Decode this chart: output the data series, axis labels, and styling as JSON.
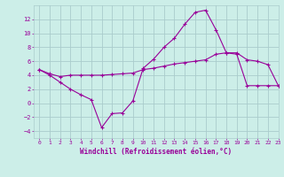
{
  "xlabel": "Windchill (Refroidissement éolien,°C)",
  "background_color": "#cceee8",
  "grid_color": "#aacccc",
  "line_color": "#990099",
  "x_ticks": [
    0,
    1,
    2,
    3,
    4,
    5,
    6,
    7,
    8,
    9,
    10,
    11,
    12,
    13,
    14,
    15,
    16,
    17,
    18,
    19,
    20,
    21,
    22,
    23
  ],
  "ylim": [
    -5,
    14
  ],
  "xlim": [
    -0.5,
    23
  ],
  "yticks": [
    -4,
    -2,
    0,
    2,
    4,
    6,
    8,
    10,
    12
  ],
  "line1_x": [
    0,
    1,
    2,
    3,
    4,
    5,
    6,
    7,
    8,
    9,
    10,
    11,
    12,
    13,
    14,
    15,
    16,
    17,
    18,
    19,
    20,
    21,
    22,
    23
  ],
  "line1_y": [
    4.8,
    4.0,
    3.0,
    2.0,
    1.2,
    0.5,
    -3.5,
    -1.5,
    -1.4,
    0.3,
    5.0,
    6.3,
    8.0,
    9.3,
    11.3,
    13.0,
    13.3,
    10.5,
    7.2,
    7.2,
    6.2,
    6.0,
    5.5,
    2.5
  ],
  "line2_x": [
    0,
    1,
    2,
    3,
    4,
    5,
    6,
    7,
    8,
    9,
    10,
    11,
    12,
    13,
    14,
    15,
    16,
    17,
    18,
    19,
    20,
    21,
    22,
    23
  ],
  "line2_y": [
    4.8,
    4.2,
    3.8,
    4.0,
    4.0,
    4.0,
    4.0,
    4.1,
    4.2,
    4.3,
    4.8,
    5.0,
    5.3,
    5.6,
    5.8,
    6.0,
    6.2,
    7.0,
    7.2,
    7.0,
    2.5,
    2.5,
    2.5,
    2.5
  ],
  "xlabel_fontsize": 5.5,
  "tick_fontsize": 5.0
}
